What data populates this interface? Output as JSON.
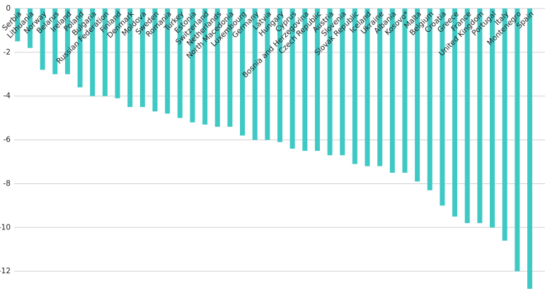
{
  "chart_data": {
    "type": "bar",
    "categories": [
      "Serbia",
      "Lithuania",
      "Norway",
      "Belarus",
      "Ireland",
      "Poland",
      "Bulgaria",
      "Russian Federation",
      "Finland",
      "Denmark",
      "Moldova",
      "Sweden",
      "Romania",
      "Turkey",
      "Estonia",
      "Switzerland",
      "Netherlands",
      "North Macedonia",
      "Luxembourg",
      "Germany",
      "Latvia",
      "Hungary",
      "Cyprus",
      "Bosnia and Herzegovina",
      "Czech Republic",
      "Austria",
      "Slovenia",
      "Slovak Republic",
      "Iceland",
      "Ukraine",
      "Albania",
      "Kosovo*",
      "Malta",
      "Belgium",
      "Croatia",
      "Greece",
      "France",
      "United Kingdom",
      "Portugal",
      "Italy",
      "Montenegro",
      "Spain"
    ],
    "values": [
      -1.5,
      -1.8,
      -2.8,
      -3.0,
      -3.0,
      -3.6,
      -4.0,
      -4.0,
      -4.1,
      -4.5,
      -4.5,
      -4.7,
      -4.8,
      -5.0,
      -5.2,
      -5.3,
      -5.4,
      -5.4,
      -5.8,
      -6.0,
      -6.0,
      -6.1,
      -6.4,
      -6.5,
      -6.5,
      -6.7,
      -6.7,
      -7.1,
      -7.2,
      -7.2,
      -7.5,
      -7.5,
      -7.9,
      -8.3,
      -9.0,
      -9.5,
      -9.8,
      -9.8,
      -10.0,
      -10.6,
      -12.0,
      -12.8
    ],
    "color": "#3ec9c5",
    "ylim": [
      -12.9,
      0
    ],
    "yticks": [
      0,
      -2,
      -4,
      -6,
      -8,
      -10,
      -12
    ],
    "grid": true
  }
}
